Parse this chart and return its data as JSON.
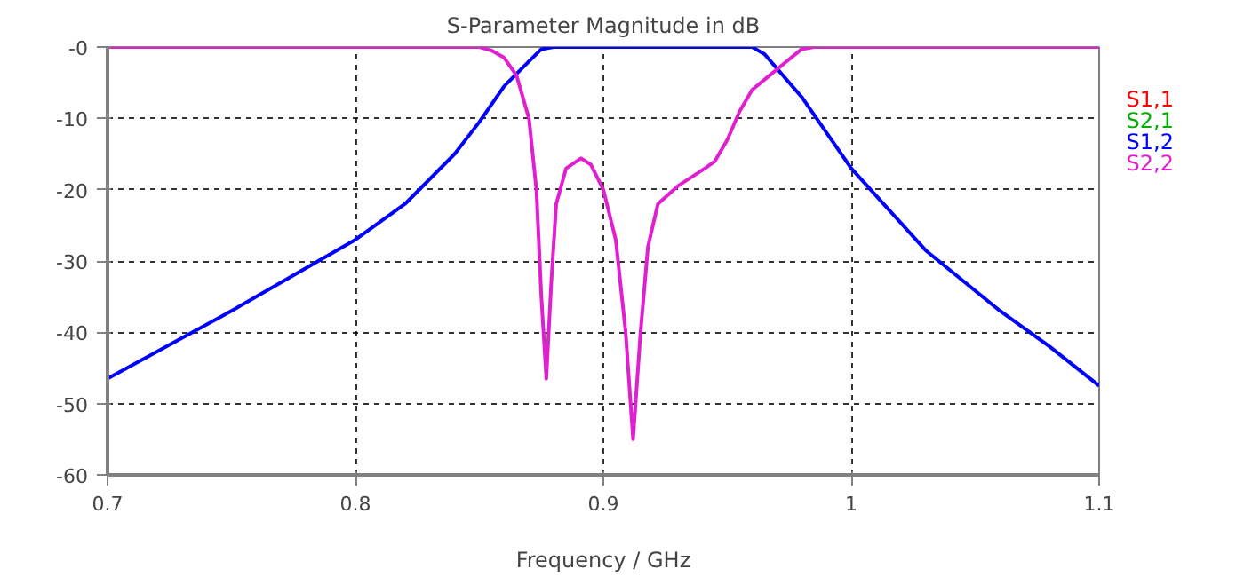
{
  "chart_data": {
    "type": "line",
    "title": "S-Parameter Magnitude in dB",
    "xlabel": "Frequency / GHz",
    "xlim": [
      0.7,
      1.1
    ],
    "xticks": [
      0.7,
      0.8,
      0.9,
      1,
      1.1
    ],
    "ylim": [
      -60,
      0
    ],
    "yticks": [
      {
        "value": 0,
        "label": "-0"
      },
      {
        "value": -10,
        "label": "-10"
      },
      {
        "value": -20,
        "label": "-20"
      },
      {
        "value": -30,
        "label": "-30"
      },
      {
        "value": -40,
        "label": "-40"
      },
      {
        "value": -50,
        "label": "-50"
      },
      {
        "value": -60,
        "label": "-60"
      }
    ],
    "grid": true,
    "line_style": "solid",
    "marker": "none",
    "series": [
      {
        "name": "S1,1",
        "color": "#ff0000"
      },
      {
        "name": "S2,1",
        "color": "#00b000"
      },
      {
        "name": "S1,2",
        "color": "#0000ff",
        "x": [
          0.7,
          0.75,
          0.8,
          0.82,
          0.84,
          0.85,
          0.86,
          0.87,
          0.875,
          0.88,
          0.96,
          0.965,
          0.97,
          0.98,
          0.99,
          1.0,
          1.03,
          1.06,
          1.08,
          1.1
        ],
        "values": [
          -46.5,
          -37,
          -27,
          -22,
          -15,
          -10.5,
          -5.5,
          -2,
          -0.3,
          0,
          0,
          -1,
          -3,
          -7,
          -12,
          -17,
          -28.5,
          -37,
          -42,
          -47.5
        ]
      },
      {
        "name": "S2,2",
        "color": "#e020d0",
        "x": [
          0.7,
          0.85,
          0.855,
          0.86,
          0.865,
          0.87,
          0.873,
          0.875,
          0.877,
          0.879,
          0.881,
          0.885,
          0.891,
          0.895,
          0.9,
          0.905,
          0.909,
          0.912,
          0.915,
          0.918,
          0.922,
          0.93,
          0.941,
          0.945,
          0.95,
          0.955,
          0.96,
          0.967,
          0.974,
          0.98,
          0.985,
          1.1
        ],
        "values": [
          0,
          0,
          -0.5,
          -1.5,
          -4,
          -10,
          -20,
          -35,
          -46.5,
          -33,
          -22,
          -17,
          -15.6,
          -16.5,
          -20,
          -27,
          -40,
          -55,
          -40,
          -28,
          -22,
          -19.5,
          -17,
          -16,
          -13,
          -9,
          -6,
          -4,
          -2,
          -0.3,
          0,
          0
        ]
      }
    ]
  }
}
